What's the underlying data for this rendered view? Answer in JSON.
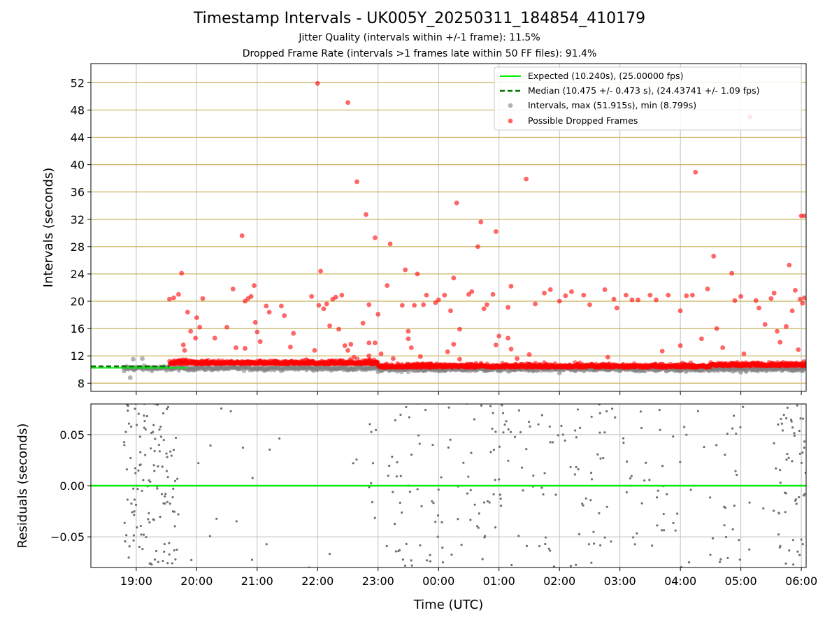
{
  "title": "Timestamp Intervals - UK005Y_20250311_184854_410179",
  "subtitle1": "Jitter Quality (intervals within +/-1 frame): 11.5%",
  "subtitle2": "Dropped Frame Rate (intervals >1 frames late within 50 FF files): 91.4%",
  "colors": {
    "expected": "#00ee00",
    "median": "#007700",
    "intervals": "#808080",
    "dropped": "#ff0000",
    "hgrid_top": "#c8b15a",
    "grid": "#bfbfbf"
  },
  "chart_data": [
    {
      "type": "scatter",
      "ylabel": "Intervals (seconds)",
      "ylim": [
        6.8,
        54.8
      ],
      "yticks": [
        8,
        12,
        16,
        20,
        24,
        28,
        32,
        36,
        40,
        44,
        48,
        52
      ],
      "x_unit": "hours since 19:00 UTC (2025-03-11)",
      "xlim": [
        -0.75,
        11.08
      ],
      "legend_position": "top-right",
      "legend": [
        "Expected (10.240s), (25.00000 fps)",
        "Median (10.475 +/- 0.473 s), (24.43741 +/- 1.09 fps)",
        "Intervals, max (51.915s), min (8.799s)",
        "Possible Dropped Frames"
      ],
      "expected_interval": 10.24,
      "median_interval": 10.475,
      "series": [
        {
          "name": "Intervals, max (51.915s), min (8.799s)",
          "note": "dense band ~9.5-11 s across full time range",
          "points": [
            [
              -0.2,
              9.8
            ],
            [
              -0.15,
              10.4
            ],
            [
              -0.1,
              8.8
            ],
            [
              0.0,
              10.2
            ],
            [
              0.1,
              11.6
            ],
            [
              -0.05,
              11.5
            ],
            [
              0.3,
              10.1
            ],
            [
              0.5,
              9.9
            ],
            [
              1.0,
              10.3
            ],
            [
              2.0,
              10.1
            ],
            [
              3.0,
              10.0
            ],
            [
              4.0,
              9.7
            ],
            [
              5.0,
              9.8
            ],
            [
              6.0,
              9.9
            ],
            [
              7.0,
              9.5
            ],
            [
              8.0,
              9.8
            ],
            [
              9.0,
              9.8
            ],
            [
              10.0,
              9.6
            ],
            [
              11.0,
              10.3
            ]
          ]
        },
        {
          "name": "Possible Dropped Frames",
          "points": [
            [
              0.55,
              20.3
            ],
            [
              0.62,
              20.5
            ],
            [
              0.7,
              21.0
            ],
            [
              0.75,
              24.1
            ],
            [
              0.78,
              13.6
            ],
            [
              0.8,
              12.8
            ],
            [
              0.85,
              18.4
            ],
            [
              0.9,
              15.6
            ],
            [
              0.98,
              14.6
            ],
            [
              1.0,
              17.6
            ],
            [
              1.05,
              16.2
            ],
            [
              1.1,
              20.4
            ],
            [
              1.3,
              14.6
            ],
            [
              1.5,
              16.2
            ],
            [
              1.6,
              21.8
            ],
            [
              1.65,
              13.2
            ],
            [
              1.75,
              29.6
            ],
            [
              1.8,
              13.1
            ],
            [
              1.8,
              20.0
            ],
            [
              1.85,
              20.4
            ],
            [
              1.9,
              20.7
            ],
            [
              1.95,
              22.3
            ],
            [
              1.97,
              16.9
            ],
            [
              2.0,
              15.5
            ],
            [
              2.05,
              14.1
            ],
            [
              2.15,
              19.3
            ],
            [
              2.2,
              18.4
            ],
            [
              2.4,
              19.3
            ],
            [
              2.45,
              17.9
            ],
            [
              2.55,
              13.3
            ],
            [
              2.6,
              15.3
            ],
            [
              2.9,
              20.7
            ],
            [
              2.95,
              12.8
            ],
            [
              3.0,
              51.9
            ],
            [
              3.02,
              19.4
            ],
            [
              3.05,
              24.4
            ],
            [
              3.1,
              18.9
            ],
            [
              3.15,
              19.6
            ],
            [
              3.2,
              16.4
            ],
            [
              3.25,
              20.3
            ],
            [
              3.3,
              20.6
            ],
            [
              3.35,
              15.9
            ],
            [
              3.4,
              20.9
            ],
            [
              3.45,
              13.5
            ],
            [
              3.5,
              49.1
            ],
            [
              3.5,
              12.8
            ],
            [
              3.55,
              13.7
            ],
            [
              3.6,
              11.8
            ],
            [
              3.65,
              37.5
            ],
            [
              3.75,
              16.8
            ],
            [
              3.8,
              32.7
            ],
            [
              3.85,
              19.5
            ],
            [
              3.85,
              13.9
            ],
            [
              3.95,
              29.3
            ],
            [
              4.0,
              18.1
            ],
            [
              4.15,
              22.3
            ],
            [
              4.2,
              28.4
            ],
            [
              4.4,
              19.4
            ],
            [
              4.45,
              24.6
            ],
            [
              4.5,
              15.6
            ],
            [
              4.5,
              14.5
            ],
            [
              4.6,
              19.4
            ],
            [
              4.65,
              24.0
            ],
            [
              4.75,
              19.5
            ],
            [
              4.8,
              20.9
            ],
            [
              4.95,
              19.8
            ],
            [
              5.0,
              20.2
            ],
            [
              5.1,
              20.9
            ],
            [
              5.2,
              18.6
            ],
            [
              5.25,
              23.4
            ],
            [
              5.3,
              34.4
            ],
            [
              5.35,
              15.9
            ],
            [
              5.5,
              21.0
            ],
            [
              5.55,
              21.4
            ],
            [
              5.65,
              28.0
            ],
            [
              5.7,
              31.6
            ],
            [
              5.75,
              18.9
            ],
            [
              5.8,
              19.5
            ],
            [
              5.9,
              21.0
            ],
            [
              5.95,
              30.2
            ],
            [
              6.0,
              14.9
            ],
            [
              6.15,
              19.1
            ],
            [
              6.2,
              22.2
            ],
            [
              6.45,
              37.9
            ],
            [
              6.6,
              19.6
            ],
            [
              6.75,
              21.2
            ],
            [
              6.85,
              21.7
            ],
            [
              7.0,
              20.0
            ],
            [
              7.1,
              20.8
            ],
            [
              7.2,
              21.4
            ],
            [
              7.4,
              20.9
            ],
            [
              7.5,
              19.5
            ],
            [
              7.75,
              21.7
            ],
            [
              7.9,
              20.3
            ],
            [
              7.95,
              19.0
            ],
            [
              8.1,
              20.9
            ],
            [
              8.2,
              20.2
            ],
            [
              8.3,
              20.2
            ],
            [
              8.5,
              20.9
            ],
            [
              8.6,
              20.2
            ],
            [
              8.8,
              20.9
            ],
            [
              9.0,
              18.6
            ],
            [
              9.1,
              20.8
            ],
            [
              9.2,
              20.9
            ],
            [
              9.25,
              38.9
            ],
            [
              9.35,
              14.5
            ],
            [
              9.45,
              21.8
            ],
            [
              9.55,
              26.6
            ],
            [
              9.6,
              16.0
            ],
            [
              9.7,
              13.2
            ],
            [
              9.85,
              24.1
            ],
            [
              9.9,
              20.1
            ],
            [
              10.0,
              20.7
            ],
            [
              10.05,
              12.3
            ],
            [
              10.15,
              47.0
            ],
            [
              10.25,
              20.1
            ],
            [
              10.3,
              19.0
            ],
            [
              10.4,
              16.6
            ],
            [
              10.5,
              20.4
            ],
            [
              10.55,
              21.2
            ],
            [
              10.65,
              14.0
            ],
            [
              10.75,
              16.3
            ],
            [
              10.8,
              25.3
            ],
            [
              10.85,
              18.6
            ],
            [
              10.95,
              12.9
            ],
            [
              11.0,
              32.5
            ],
            [
              11.05,
              32.5
            ],
            [
              10.6,
              15.6
            ],
            [
              10.98,
              20.3
            ],
            [
              11.02,
              19.7
            ],
            [
              11.05,
              20.5
            ],
            [
              10.9,
              21.6
            ],
            [
              9.0,
              13.5
            ],
            [
              6.5,
              12.2
            ],
            [
              6.3,
              11.6
            ],
            [
              4.05,
              12.3
            ],
            [
              8.7,
              12.7
            ],
            [
              7.8,
              11.8
            ],
            [
              5.95,
              13.6
            ],
            [
              6.15,
              14.6
            ],
            [
              6.2,
              13.0
            ],
            [
              3.95,
              13.9
            ],
            [
              4.25,
              11.6
            ],
            [
              4.55,
              13.2
            ],
            [
              4.7,
              11.9
            ],
            [
              5.15,
              12.6
            ],
            [
              5.25,
              13.7
            ],
            [
              5.35,
              11.5
            ],
            [
              3.85,
              12.0
            ]
          ]
        }
      ]
    },
    {
      "type": "scatter",
      "xlabel": "Time (UTC)",
      "ylabel": "Residuals (seconds)",
      "ylim": [
        -0.08,
        0.08
      ],
      "yticks": [
        0.05,
        0.0,
        -0.05
      ],
      "ytick_labels": [
        "0.05",
        "0.00",
        "−0.05"
      ],
      "xticks": [
        "19:00",
        "20:00",
        "21:00",
        "22:00",
        "23:00",
        "00:00",
        "01:00",
        "02:00",
        "03:00",
        "04:00",
        "05:00",
        "06:00"
      ],
      "xtick_hours": [
        0,
        1,
        2,
        3,
        4,
        5,
        6,
        7,
        8,
        9,
        10,
        11
      ],
      "zero_line": 0.0,
      "series": [
        {
          "name": "Residuals",
          "note": "scattered grey points in [-0.08, 0.08]; dense at 18:48-19:40, 22:45-02:40, 05:40-06:05"
        }
      ]
    }
  ]
}
